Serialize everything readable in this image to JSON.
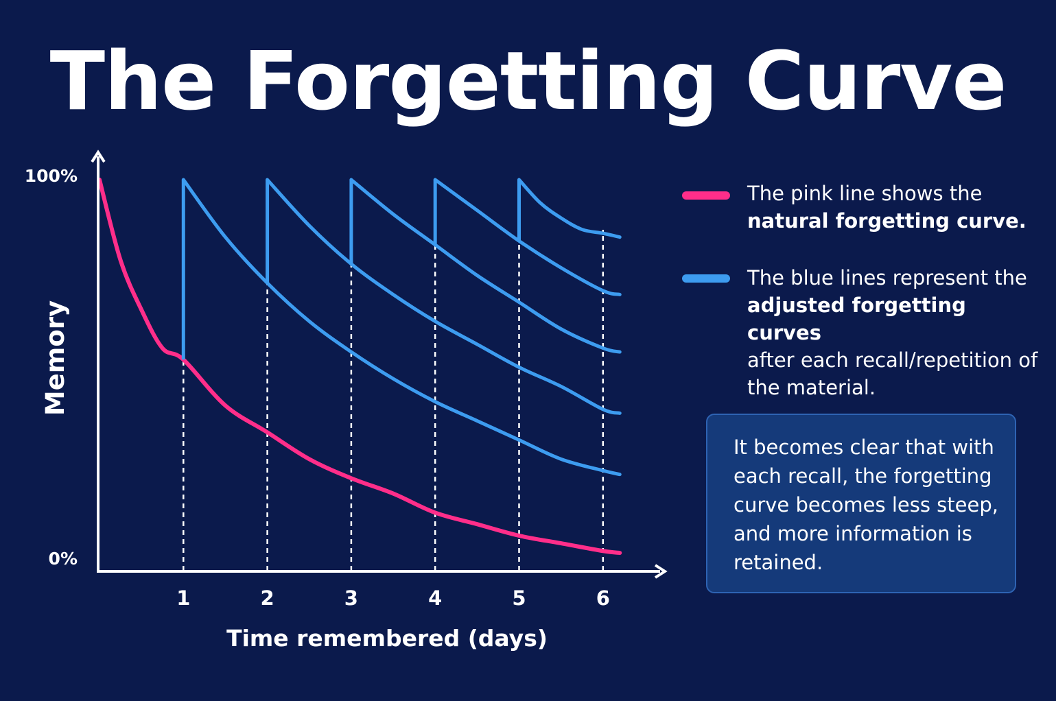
{
  "title": "The Forgetting Curve",
  "legend": {
    "pink_text_normal": "The pink line shows the",
    "pink_text_bold": "natural forgetting curve.",
    "blue_text_normal_1": "The blue lines represent the",
    "blue_text_bold": "adjusted forgetting curves",
    "blue_text_normal_2": "after each recall/repetition of the material."
  },
  "info_box": {
    "text": "It becomes clear that with each recall, the forgetting curve becomes less steep, and more information is retained."
  },
  "colors": {
    "background": "#0b1a4c",
    "pink": "#ff2e8a",
    "blue": "#3d9cf0",
    "axis": "#ffffff",
    "box_fill": "#153a7a",
    "box_border": "#2e63b3"
  },
  "chart_data": {
    "type": "line",
    "xlabel": "Time remembered (days)",
    "ylabel": "Memory",
    "xlim": [
      0,
      6.2
    ],
    "ylim": [
      0,
      100
    ],
    "x_ticks": [
      "1",
      "2",
      "3",
      "4",
      "5",
      "6"
    ],
    "y_tick_labels": [
      "100%",
      "0%"
    ],
    "guide_lines_at_x": [
      1,
      2,
      3,
      4,
      5,
      6
    ],
    "series": [
      {
        "color": "pink",
        "x": [
          0,
          0.25,
          0.5,
          0.75,
          1,
          1.5,
          2,
          2.5,
          3,
          3.5,
          4,
          4.5,
          5,
          5.5,
          6,
          6.2
        ],
        "y": [
          100,
          79,
          66,
          56,
          53,
          41,
          34,
          27,
          22,
          18,
          13,
          10,
          7,
          5,
          3,
          2.5
        ]
      },
      {
        "color": "blue",
        "x": [
          1,
          1.5,
          2,
          2.5,
          3,
          3.5,
          4,
          4.5,
          5,
          5.5,
          6,
          6.2
        ],
        "y": [
          100,
          85,
          73,
          63,
          55,
          48,
          42,
          37,
          32,
          27,
          24,
          23
        ]
      },
      {
        "color": "blue",
        "x": [
          2,
          2.5,
          3,
          3.5,
          4,
          4.5,
          5,
          5.5,
          6,
          6.2
        ],
        "y": [
          100,
          88,
          78,
          70,
          63,
          57,
          51,
          46,
          40,
          39
        ]
      },
      {
        "color": "blue",
        "x": [
          3,
          3.5,
          4,
          4.5,
          5,
          5.5,
          6,
          6.2
        ],
        "y": [
          100,
          91,
          83,
          75,
          68,
          61,
          56,
          55
        ]
      },
      {
        "color": "blue",
        "x": [
          4,
          4.5,
          5,
          5.5,
          6,
          6.2
        ],
        "y": [
          100,
          92,
          84,
          77,
          71,
          70
        ]
      },
      {
        "color": "blue",
        "x": [
          5,
          5.25,
          5.5,
          5.75,
          6,
          6.2
        ],
        "y": [
          100,
          94,
          90,
          87,
          86,
          85
        ]
      }
    ]
  }
}
